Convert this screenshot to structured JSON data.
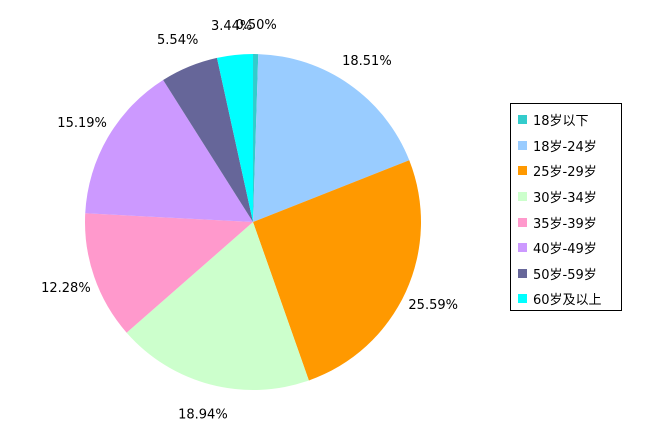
{
  "chart_data": {
    "type": "pie",
    "categories": [
      "18岁以下",
      "18岁-24岁",
      "25岁-29岁",
      "30岁-34岁",
      "35岁-39岁",
      "40岁-49岁",
      "50岁-59岁",
      "60岁及以上"
    ],
    "values": [
      0.5,
      18.51,
      25.59,
      18.94,
      12.28,
      15.19,
      5.54,
      3.44
    ],
    "labels": [
      "0.50%",
      "18.51%",
      "25.59%",
      "18.94%",
      "12.28%",
      "15.19%",
      "5.54%",
      "3.44%"
    ],
    "colors": [
      "#33CCCC",
      "#99CCFF",
      "#FF9900",
      "#CCFFCC",
      "#FF99CC",
      "#CC99FF",
      "#666699",
      "#00FFFF"
    ],
    "start": "12 o'clock",
    "direction": "clockwise",
    "legend": "right"
  }
}
